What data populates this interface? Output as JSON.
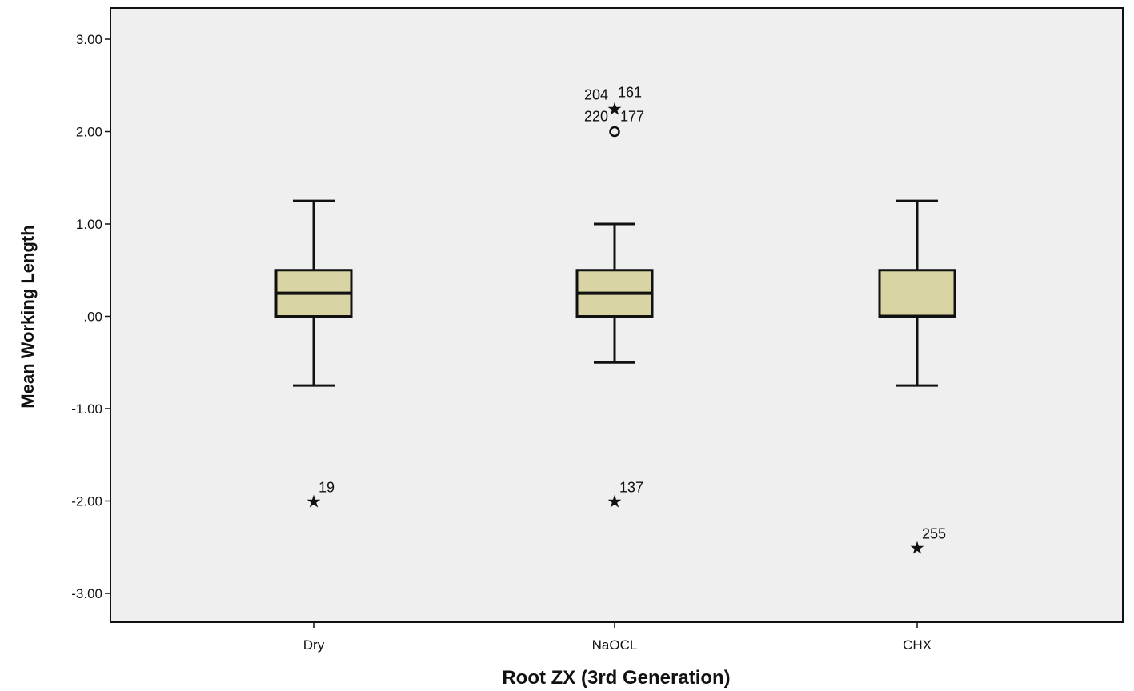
{
  "chart_data": {
    "type": "boxplot",
    "title": "",
    "xlabel": "Root ZX (3rd Generation)",
    "ylabel": "Mean Working Length",
    "ylim": [
      -3.3,
      3.3
    ],
    "yticks": [
      3,
      2,
      1,
      0,
      -1,
      -2,
      -3
    ],
    "ytick_labels": [
      "3.00",
      "2.00",
      "1.00",
      ".00",
      "-1.00",
      "-2.00",
      "-3.00"
    ],
    "categories": [
      "Dry",
      "NaOCL",
      "CHX"
    ],
    "boxes": [
      {
        "category": "Dry",
        "whisker_low": -0.75,
        "q1": 0.0,
        "median": 0.25,
        "q3": 0.5,
        "whisker_high": 1.25
      },
      {
        "category": "NaOCL",
        "whisker_low": -0.5,
        "q1": 0.0,
        "median": 0.25,
        "q3": 0.5,
        "whisker_high": 1.0
      },
      {
        "category": "CHX",
        "whisker_low": -0.75,
        "q1": 0.0,
        "median": 0.0,
        "q3": 0.5,
        "whisker_high": 1.25
      }
    ],
    "outliers": [
      {
        "category": "Dry",
        "value": -2.0,
        "marker": "star",
        "labels": [
          "19"
        ]
      },
      {
        "category": "NaOCL",
        "value": 2.25,
        "marker": "star",
        "labels": [
          "204",
          "161"
        ]
      },
      {
        "category": "NaOCL",
        "value": 2.0,
        "marker": "circle",
        "labels": [
          "220",
          "177"
        ]
      },
      {
        "category": "NaOCL",
        "value": -2.0,
        "marker": "star",
        "labels": [
          "137"
        ]
      },
      {
        "category": "CHX",
        "value": -2.5,
        "marker": "star",
        "labels": [
          "255"
        ]
      }
    ],
    "grid": false,
    "colors": {
      "box_fill": "#d9d4a4",
      "plot_background": "#efefef",
      "line": "#111111"
    }
  }
}
